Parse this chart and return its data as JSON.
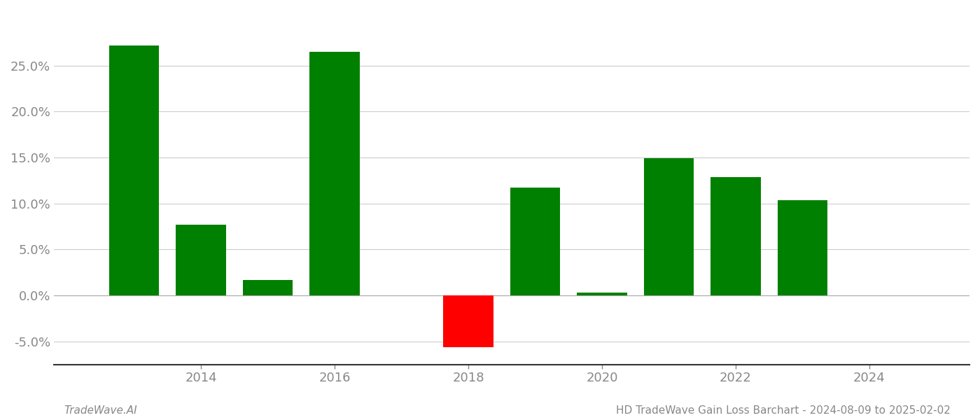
{
  "years": [
    2013,
    2014,
    2015,
    2016,
    2018,
    2019,
    2020,
    2021,
    2022,
    2023
  ],
  "values": [
    0.272,
    0.077,
    0.017,
    0.265,
    -0.056,
    0.117,
    0.003,
    0.149,
    0.129,
    0.104
  ],
  "bar_colors": [
    "#008000",
    "#008000",
    "#008000",
    "#008000",
    "#ff0000",
    "#008000",
    "#008000",
    "#008000",
    "#008000",
    "#008000"
  ],
  "xlim": [
    2011.8,
    2025.5
  ],
  "ylim": [
    -0.075,
    0.31
  ],
  "yticks": [
    -0.05,
    0.0,
    0.05,
    0.1,
    0.15,
    0.2,
    0.25
  ],
  "xticks": [
    2014,
    2016,
    2018,
    2020,
    2022,
    2024
  ],
  "footer_left": "TradeWave.AI",
  "footer_right": "HD TradeWave Gain Loss Barchart - 2024-08-09 to 2025-02-02",
  "bar_width": 0.75,
  "background_color": "#ffffff",
  "grid_color": "#cccccc",
  "axis_color": "#888888",
  "tick_label_color": "#888888",
  "footer_fontsize": 11,
  "tick_fontsize": 13
}
